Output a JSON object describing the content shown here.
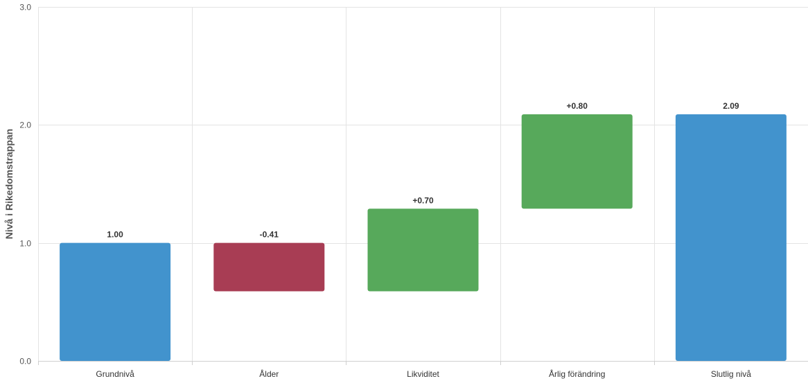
{
  "chart_data": {
    "type": "bar",
    "subtype": "waterfall",
    "title": "",
    "xlabel": "",
    "ylabel": "Nivå i Rikedomstrappan",
    "ylim": [
      0,
      3
    ],
    "yticks": [
      "0.0",
      "1.0",
      "2.0",
      "3.0"
    ],
    "grid": true,
    "legend": "none",
    "categories": [
      "Grundnivå",
      "Ålder",
      "Likviditet",
      "Årlig förändring",
      "Slutlig nivå"
    ],
    "bars": [
      {
        "category": "Grundnivå",
        "start": 0,
        "end": 1.0,
        "label": "1.00",
        "kind": "total"
      },
      {
        "category": "Ålder",
        "start": 1.0,
        "end": 0.59,
        "label": "-0.41",
        "kind": "decrease"
      },
      {
        "category": "Likviditet",
        "start": 0.59,
        "end": 1.29,
        "label": "+0.70",
        "kind": "increase"
      },
      {
        "category": "Årlig förändring",
        "start": 1.29,
        "end": 2.09,
        "label": "+0.80",
        "kind": "increase"
      },
      {
        "category": "Slutlig nivå",
        "start": 0,
        "end": 2.09,
        "label": "2.09",
        "kind": "total"
      }
    ],
    "colors": {
      "total": "#4293cd",
      "decrease": "#a83d54",
      "increase": "#57a95b"
    }
  }
}
